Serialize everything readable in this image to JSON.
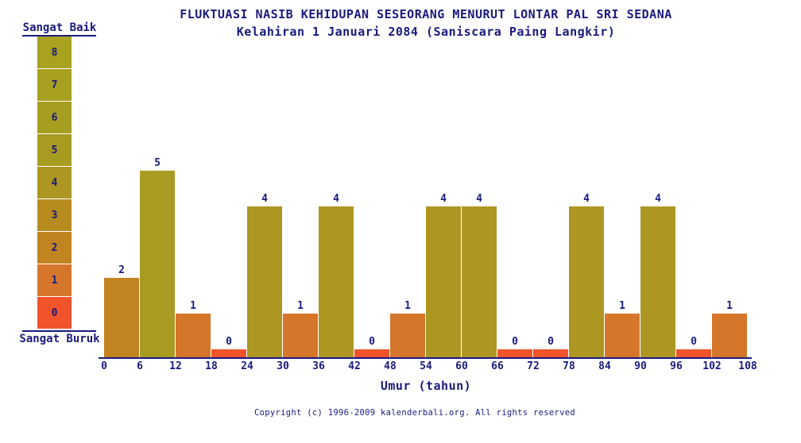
{
  "header": {
    "title": "FLUKTUASI NASIB KEHIDUPAN SESEORANG MENURUT LONTAR PAL SRI SEDANA",
    "subtitle": "Kelahiran 1 Januari 2084 (Saniscara Paing Langkir)"
  },
  "legend": {
    "top_label": "Sangat Baik",
    "bottom_label": "Sangat Buruk",
    "values": [
      8,
      7,
      6,
      5,
      4,
      3,
      2,
      1,
      0
    ]
  },
  "palette": {
    "8": "#a8a21f",
    "7": "#a7a021",
    "6": "#a69e21",
    "5": "#a89b22",
    "4": "#ad9722",
    "3": "#b68c1f",
    "2": "#c28420",
    "1": "#d6762a",
    "0": "#f1532b"
  },
  "colors": {
    "text": "#1a1a7e",
    "axis": "#1a1a7e",
    "background": "#ffffff"
  },
  "chart_data": {
    "type": "bar",
    "title": "FLUKTUASI NASIB KEHIDUPAN SESEORANG MENURUT LONTAR PAL SRI SEDANA",
    "subtitle": "Kelahiran 1 Januari 2084 (Saniscara Paing Langkir)",
    "xlabel": "Umur (tahun)",
    "ylabel": "",
    "ylim": [
      0,
      8
    ],
    "grid": false,
    "legend_position": "left",
    "x_ticks": [
      0,
      6,
      12,
      18,
      24,
      30,
      36,
      42,
      48,
      54,
      60,
      66,
      72,
      78,
      84,
      90,
      96,
      102,
      108
    ],
    "categories": [
      "0-6",
      "6-12",
      "12-18",
      "18-24",
      "24-30",
      "30-36",
      "36-42",
      "42-48",
      "48-54",
      "54-60",
      "60-66",
      "66-72",
      "72-78",
      "78-84",
      "84-90",
      "90-96",
      "96-102",
      "102-108"
    ],
    "values": [
      2,
      5,
      1,
      0,
      4,
      1,
      4,
      0,
      1,
      4,
      4,
      0,
      0,
      4,
      1,
      4,
      0,
      1
    ]
  },
  "footer": {
    "copyright": "Copyright (c) 1996-2009 kalenderbali.org. All rights reserved"
  }
}
